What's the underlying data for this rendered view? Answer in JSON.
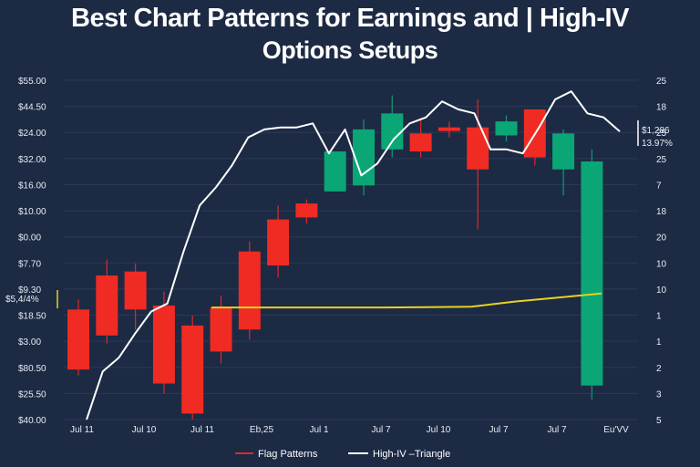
{
  "chart_data": {
    "type": "candlestick",
    "title_line1": "Best Chart Patterns for Earnings and | High-IV",
    "title_line2": "Options Setups",
    "left_axis_labels": [
      "$55.00",
      "$44.50",
      "$24.00",
      "$32.00",
      "$16.00",
      "$10.00",
      "$0.00",
      "$7.70",
      "$9.30",
      "$18.50",
      "$3.00",
      "$80.50",
      "$25.50",
      "$40.00"
    ],
    "right_axis_labels": [
      "25",
      "18",
      "25",
      "25",
      "7",
      "18",
      "20",
      "10",
      "10",
      "1",
      "1",
      "2",
      "3",
      "5"
    ],
    "x_labels": [
      "Jul 11",
      "Jul 10",
      "Jul 11",
      "Eb,25",
      "Jul 1",
      "Jul 7",
      "Jul 10",
      "Jul 7",
      "Jul 7",
      "Eu'VV"
    ],
    "price_range": [
      0,
      100
    ],
    "candles": [
      {
        "open": 25,
        "close": 55,
        "high": 60,
        "low": 22,
        "color": "red"
      },
      {
        "open": 42,
        "close": 72,
        "high": 80,
        "low": 38,
        "color": "red"
      },
      {
        "open": 55,
        "close": 74,
        "high": 78,
        "low": 45,
        "color": "red"
      },
      {
        "open": 18,
        "close": 57,
        "high": 64,
        "low": 13,
        "color": "red"
      },
      {
        "open": 3,
        "close": 47,
        "high": 52,
        "low": 0,
        "color": "red"
      },
      {
        "open": 34,
        "close": 56,
        "high": 62,
        "low": 28,
        "color": "red"
      },
      {
        "open": 45,
        "close": 84,
        "high": 89,
        "low": 40,
        "color": "red"
      },
      {
        "open": 77,
        "close": 100,
        "high": 107,
        "low": 71,
        "color": "red"
      },
      {
        "open": 101,
        "close": 108,
        "high": 110,
        "low": 98,
        "color": "red"
      },
      {
        "open": 114,
        "close": 134,
        "high": 134,
        "low": 114,
        "color": "green"
      },
      {
        "open": 117,
        "close": 145,
        "high": 150,
        "low": 112,
        "color": "green"
      },
      {
        "open": 135,
        "close": 153,
        "high": 162,
        "low": 131,
        "color": "green"
      },
      {
        "open": 134,
        "close": 143,
        "high": 150,
        "low": 131,
        "color": "red"
      },
      {
        "open": 146,
        "close": 146,
        "high": 149,
        "low": 141,
        "color": "red"
      },
      {
        "open": 125,
        "close": 146,
        "high": 160,
        "low": 95,
        "color": "red"
      },
      {
        "open": 142,
        "close": 149,
        "high": 152,
        "low": 139,
        "color": "green"
      },
      {
        "open": 131,
        "close": 155,
        "high": 155,
        "low": 127,
        "color": "red"
      },
      {
        "open": 125,
        "close": 143,
        "high": 145,
        "low": 112,
        "color": "green"
      },
      {
        "open": 17,
        "close": 129,
        "high": 135,
        "low": 10,
        "color": "green"
      }
    ],
    "series": [
      {
        "name": "High-IV Triangle",
        "color": "#ffffff",
        "values": [
          [
            0,
            0
          ],
          [
            1,
            24
          ],
          [
            2,
            31
          ],
          [
            3,
            43
          ],
          [
            4,
            54
          ],
          [
            5,
            58
          ],
          [
            6,
            84
          ],
          [
            7,
            107
          ],
          [
            8,
            116
          ],
          [
            9,
            127
          ],
          [
            10,
            141
          ],
          [
            11,
            145
          ],
          [
            12,
            146
          ],
          [
            13,
            146
          ],
          [
            14,
            148
          ],
          [
            15,
            133
          ],
          [
            16,
            145
          ],
          [
            17,
            122
          ],
          [
            18,
            128
          ],
          [
            19,
            140
          ],
          [
            20,
            148
          ],
          [
            21,
            151
          ],
          [
            22,
            159
          ],
          [
            23,
            155
          ],
          [
            24,
            153
          ],
          [
            25,
            135
          ],
          [
            26,
            135
          ],
          [
            27,
            133
          ],
          [
            28,
            146
          ],
          [
            29,
            160
          ],
          [
            30,
            164
          ],
          [
            31,
            153
          ],
          [
            32,
            151
          ],
          [
            33,
            144
          ]
        ]
      },
      {
        "name": "Flag Patterns",
        "color": "#e8d21f",
        "values": [
          [
            0,
            56
          ],
          [
            1,
            56
          ],
          [
            2,
            56
          ],
          [
            3,
            56
          ],
          [
            4,
            56
          ],
          [
            5,
            56.2
          ],
          [
            6,
            56.4
          ],
          [
            7,
            59
          ],
          [
            8,
            61
          ],
          [
            9,
            63
          ]
        ]
      }
    ],
    "right_annotation": {
      "price": "$1,286",
      "change": "13.97%"
    },
    "left_annotation": "$5,4/4%",
    "legend": [
      {
        "label": "Flag Patterns",
        "color": "#e02a26"
      },
      {
        "label": "High-IV –Triangle",
        "color": "#ffffff"
      }
    ],
    "colors": {
      "up": "#0aa675",
      "down": "#ef2b23",
      "background": "#1c2a44",
      "grid": "#2a3955"
    }
  }
}
